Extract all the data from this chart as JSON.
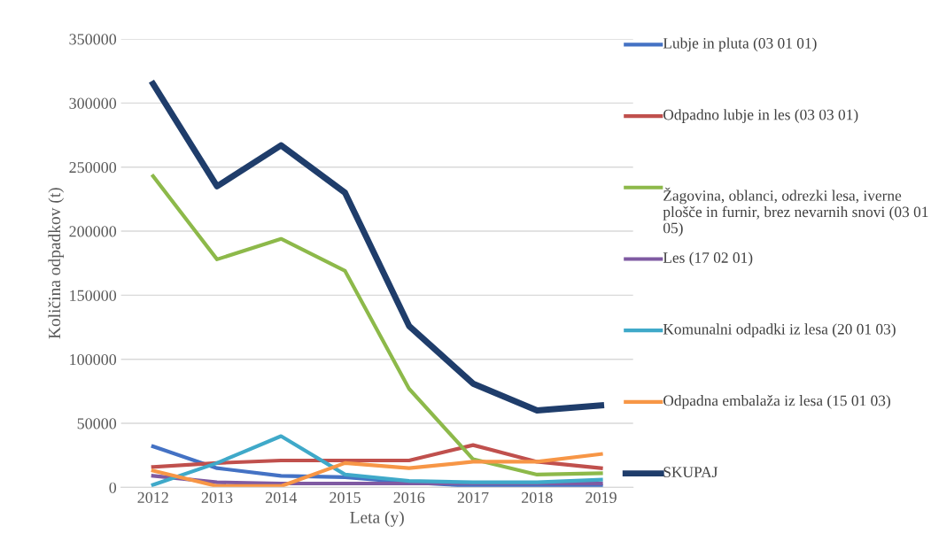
{
  "chart_data": {
    "type": "line",
    "xlabel": "Leta (y)",
    "ylabel": "Količina odpadkov (t)",
    "categories": [
      "2012",
      "2013",
      "2014",
      "2015",
      "2016",
      "2017",
      "2018",
      "2019"
    ],
    "ylim": [
      0,
      350000
    ],
    "yticks": [
      0,
      50000,
      100000,
      150000,
      200000,
      250000,
      300000,
      350000
    ],
    "grid": "y",
    "legend": "right",
    "series": [
      {
        "name": "Lubje in pluta (03 01 01)",
        "color": "#4472c4",
        "values": [
          32000,
          15000,
          9000,
          8000,
          4000,
          1000,
          1000,
          1000
        ]
      },
      {
        "name": "Odpadno lubje in les (03 03 01)",
        "color": "#c0504d",
        "values": [
          16000,
          19000,
          21000,
          21000,
          21000,
          33000,
          20000,
          15000
        ]
      },
      {
        "name": "Žagovina, oblanci, odrezki lesa, iverne plošče in furnir, brez nevarnih snovi (03 01 05)",
        "color": "#8db94a",
        "values": [
          243000,
          178000,
          194000,
          169000,
          77000,
          22000,
          10000,
          11000
        ]
      },
      {
        "name": "Les (17 02 01)",
        "color": "#7f5aa2",
        "values": [
          9000,
          4000,
          3000,
          3000,
          3000,
          3000,
          3000,
          3000
        ]
      },
      {
        "name": "Komunalni odpadki iz lesa (20 01 03)",
        "color": "#3fa9c9",
        "values": [
          2000,
          19000,
          40000,
          10000,
          5000,
          4000,
          4000,
          6000
        ]
      },
      {
        "name": "Odpadna embalaža iz lesa (15 01 03)",
        "color": "#f79646",
        "values": [
          13000,
          1000,
          1000,
          19000,
          15000,
          20000,
          20000,
          26000
        ]
      },
      {
        "name": "SKUPAJ",
        "color": "#1f3d6b",
        "values": [
          315000,
          235000,
          267000,
          230000,
          126000,
          81000,
          60000,
          64000
        ]
      }
    ]
  }
}
